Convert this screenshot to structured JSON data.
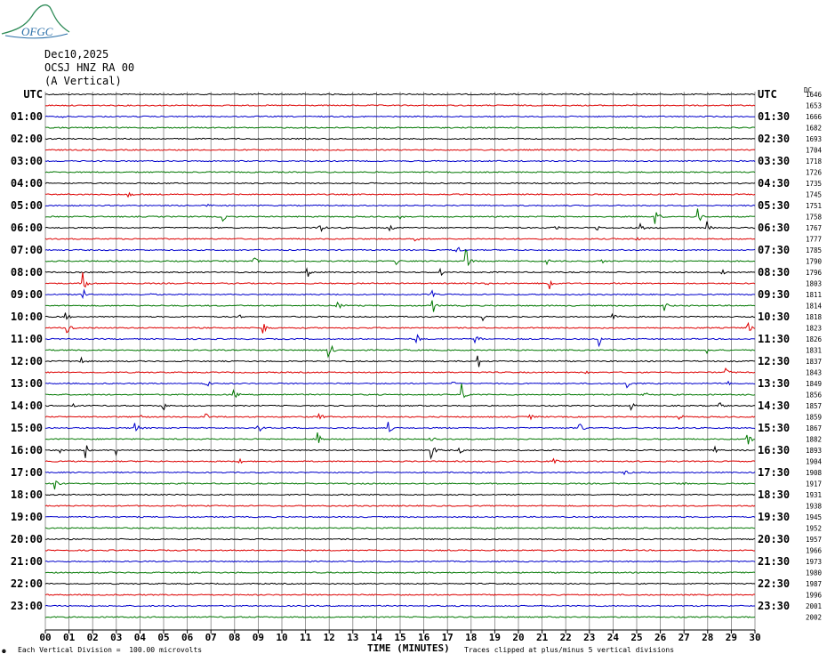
{
  "logo": {
    "text": "OFGC",
    "color": "#2e8b57"
  },
  "header": {
    "date": "Dec10,2025",
    "station": "OCSJ HNZ RA 00",
    "component": "(A Vertical)"
  },
  "left_axis_title": "UTC",
  "right_axis_title": "UTC",
  "right_corner_label": "DC",
  "footer": {
    "scale_note": "Each Vertical Division =  100.00 microvolts",
    "clip_note": "Traces clipped at plus/minus 5 vertical divisions",
    "corner_mark": "⚉"
  },
  "colors": {
    "trace_cycle": [
      "#000000",
      "#dd0000",
      "#0000cc",
      "#007700"
    ],
    "grid": "#808080"
  },
  "chart_data": {
    "type": "line",
    "subtype": "helicorder",
    "xlabel": "TIME (MINUTES)",
    "x_ticks": [
      "00",
      "01",
      "02",
      "03",
      "04",
      "05",
      "06",
      "07",
      "08",
      "09",
      "10",
      "11",
      "12",
      "13",
      "14",
      "15",
      "16",
      "17",
      "18",
      "19",
      "20",
      "21",
      "22",
      "23",
      "24",
      "25",
      "26",
      "27",
      "28",
      "29",
      "30"
    ],
    "xlim": [
      0,
      30
    ],
    "grid": true,
    "left_labels": [
      "UTC",
      "01:00",
      "02:00",
      "03:00",
      "04:00",
      "05:00",
      "06:00",
      "07:00",
      "08:00",
      "09:00",
      "10:00",
      "11:00",
      "12:00",
      "13:00",
      "14:00",
      "15:00",
      "16:00",
      "17:00",
      "18:00",
      "19:00",
      "20:00",
      "21:00",
      "22:00",
      "23:00"
    ],
    "right_labels": [
      "UTC",
      "01:30",
      "02:30",
      "03:30",
      "04:30",
      "05:30",
      "06:30",
      "07:30",
      "08:30",
      "09:30",
      "10:30",
      "11:30",
      "12:30",
      "13:30",
      "14:30",
      "15:30",
      "16:30",
      "17:30",
      "18:30",
      "19:30",
      "20:30",
      "21:30",
      "22:30",
      "23:30"
    ],
    "dc_offsets": [
      "1646",
      "1653",
      "1666",
      "1682",
      "1693",
      "1704",
      "1718",
      "1726",
      "1735",
      "1745",
      "1751",
      "1758",
      "1767",
      "1777",
      "1785",
      "1790",
      "1796",
      "1803",
      "1811",
      "1814",
      "1818",
      "1823",
      "1826",
      "1831",
      "1837",
      "1843",
      "1849",
      "1856",
      "1857",
      "1859",
      "1867",
      "1882",
      "1893",
      "1904",
      "1908",
      "1917",
      "1931",
      "1938",
      "1945",
      "1952",
      "1957",
      "1966",
      "1973",
      "1980",
      "1987",
      "1996",
      "2001",
      "2002"
    ],
    "row_count": 48,
    "events": [
      {
        "row": 2,
        "minute": 0.7,
        "amp": 4
      },
      {
        "row": 9,
        "minute": 3.5,
        "amp": 3
      },
      {
        "row": 10,
        "minute": 6.8,
        "amp": 6
      },
      {
        "row": 11,
        "minute": 7.5,
        "amp": 6
      },
      {
        "row": 11,
        "minute": 15.0,
        "amp": 5
      },
      {
        "row": 11,
        "minute": 25.8,
        "amp": 10
      },
      {
        "row": 11,
        "minute": 27.6,
        "amp": 14
      },
      {
        "row": 12,
        "minute": 11.6,
        "amp": 9
      },
      {
        "row": 12,
        "minute": 14.5,
        "amp": 9
      },
      {
        "row": 12,
        "minute": 21.5,
        "amp": 8
      },
      {
        "row": 12,
        "minute": 23.3,
        "amp": 5
      },
      {
        "row": 12,
        "minute": 25.2,
        "amp": 6
      },
      {
        "row": 12,
        "minute": 28.0,
        "amp": 8
      },
      {
        "row": 13,
        "minute": 15.6,
        "amp": 6
      },
      {
        "row": 13,
        "minute": 25.0,
        "amp": 5
      },
      {
        "row": 14,
        "minute": 17.4,
        "amp": 7
      },
      {
        "row": 14,
        "minute": 24.2,
        "amp": 4
      },
      {
        "row": 15,
        "minute": 8.8,
        "amp": 8
      },
      {
        "row": 15,
        "minute": 14.8,
        "amp": 6
      },
      {
        "row": 15,
        "minute": 17.8,
        "amp": 14
      },
      {
        "row": 15,
        "minute": 21.2,
        "amp": 5
      },
      {
        "row": 15,
        "minute": 23.5,
        "amp": 4
      },
      {
        "row": 16,
        "minute": 11.1,
        "amp": 5
      },
      {
        "row": 16,
        "minute": 16.7,
        "amp": 5
      },
      {
        "row": 16,
        "minute": 28.6,
        "amp": 6
      },
      {
        "row": 17,
        "minute": 1.6,
        "amp": 14
      },
      {
        "row": 17,
        "minute": 18.6,
        "amp": 6
      },
      {
        "row": 17,
        "minute": 21.3,
        "amp": 9
      },
      {
        "row": 18,
        "minute": 1.6,
        "amp": 10
      },
      {
        "row": 18,
        "minute": 4.3,
        "amp": 6
      },
      {
        "row": 18,
        "minute": 16.3,
        "amp": 8
      },
      {
        "row": 19,
        "minute": 12.3,
        "amp": 14
      },
      {
        "row": 19,
        "minute": 16.4,
        "amp": 8
      },
      {
        "row": 19,
        "minute": 26.2,
        "amp": 6
      },
      {
        "row": 20,
        "minute": 0.8,
        "amp": 8
      },
      {
        "row": 20,
        "minute": 8.2,
        "amp": 4
      },
      {
        "row": 20,
        "minute": 18.5,
        "amp": 5
      },
      {
        "row": 20,
        "minute": 24.0,
        "amp": 6
      },
      {
        "row": 21,
        "minute": 0.9,
        "amp": 12
      },
      {
        "row": 21,
        "minute": 9.2,
        "amp": 10
      },
      {
        "row": 21,
        "minute": 29.7,
        "amp": 8
      },
      {
        "row": 22,
        "minute": 15.7,
        "amp": 8
      },
      {
        "row": 22,
        "minute": 18.2,
        "amp": 9
      },
      {
        "row": 22,
        "minute": 23.4,
        "amp": 10
      },
      {
        "row": 23,
        "minute": 12.0,
        "amp": 14
      },
      {
        "row": 23,
        "minute": 28.0,
        "amp": 4
      },
      {
        "row": 24,
        "minute": 1.5,
        "amp": 6
      },
      {
        "row": 24,
        "minute": 18.3,
        "amp": 8
      },
      {
        "row": 25,
        "minute": 22.8,
        "amp": 5
      },
      {
        "row": 25,
        "minute": 28.8,
        "amp": 5
      },
      {
        "row": 26,
        "minute": 6.8,
        "amp": 6
      },
      {
        "row": 26,
        "minute": 17.1,
        "amp": 7
      },
      {
        "row": 26,
        "minute": 24.6,
        "amp": 6
      },
      {
        "row": 26,
        "minute": 28.9,
        "amp": 7
      },
      {
        "row": 27,
        "minute": 8.0,
        "amp": 5
      },
      {
        "row": 27,
        "minute": 17.6,
        "amp": 14
      },
      {
        "row": 27,
        "minute": 25.3,
        "amp": 4
      },
      {
        "row": 28,
        "minute": 1.2,
        "amp": 5
      },
      {
        "row": 28,
        "minute": 5.0,
        "amp": 5
      },
      {
        "row": 28,
        "minute": 24.8,
        "amp": 5
      },
      {
        "row": 28,
        "minute": 28.5,
        "amp": 5
      },
      {
        "row": 29,
        "minute": 4.0,
        "amp": 6
      },
      {
        "row": 29,
        "minute": 6.8,
        "amp": 5
      },
      {
        "row": 29,
        "minute": 11.6,
        "amp": 6
      },
      {
        "row": 29,
        "minute": 20.5,
        "amp": 3
      },
      {
        "row": 29,
        "minute": 26.8,
        "amp": 4
      },
      {
        "row": 30,
        "minute": 3.8,
        "amp": 8
      },
      {
        "row": 30,
        "minute": 9.0,
        "amp": 6
      },
      {
        "row": 30,
        "minute": 14.5,
        "amp": 8
      },
      {
        "row": 30,
        "minute": 22.6,
        "amp": 8
      },
      {
        "row": 31,
        "minute": 11.5,
        "amp": 12
      },
      {
        "row": 31,
        "minute": 16.2,
        "amp": 10
      },
      {
        "row": 31,
        "minute": 29.7,
        "amp": 8
      },
      {
        "row": 32,
        "minute": 0.6,
        "amp": 8
      },
      {
        "row": 32,
        "minute": 1.7,
        "amp": 10
      },
      {
        "row": 32,
        "minute": 3.0,
        "amp": 6
      },
      {
        "row": 32,
        "minute": 16.3,
        "amp": 14
      },
      {
        "row": 32,
        "minute": 17.5,
        "amp": 5
      },
      {
        "row": 32,
        "minute": 28.3,
        "amp": 5
      },
      {
        "row": 33,
        "minute": 8.2,
        "amp": 5
      },
      {
        "row": 33,
        "minute": 21.5,
        "amp": 3
      },
      {
        "row": 34,
        "minute": 24.5,
        "amp": 7
      },
      {
        "row": 35,
        "minute": 0.4,
        "amp": 10
      },
      {
        "row": 35,
        "minute": 27.0,
        "amp": 3
      }
    ]
  }
}
